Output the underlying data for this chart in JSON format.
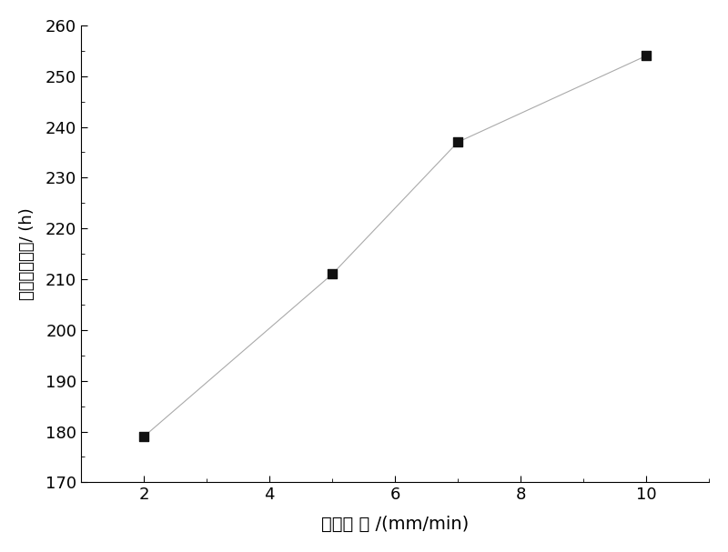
{
  "x": [
    2,
    5,
    7,
    10
  ],
  "y": [
    179,
    211,
    237,
    254
  ],
  "xlabel": "拉晶速 率 /(mm/min)",
  "ylabel": "高温持久寿命/ (h)",
  "xlim": [
    1,
    11
  ],
  "ylim": [
    170,
    260
  ],
  "xticks": [
    2,
    4,
    6,
    8,
    10
  ],
  "yticks": [
    170,
    180,
    190,
    200,
    210,
    220,
    230,
    240,
    250,
    260
  ],
  "line_color": "#aaaaaa",
  "marker_color": "#111111",
  "marker_size": 7,
  "line_style": "-",
  "line_width": 0.8,
  "xlabel_fontsize": 14,
  "ylabel_fontsize": 13,
  "tick_fontsize": 13,
  "background_color": "#ffffff"
}
